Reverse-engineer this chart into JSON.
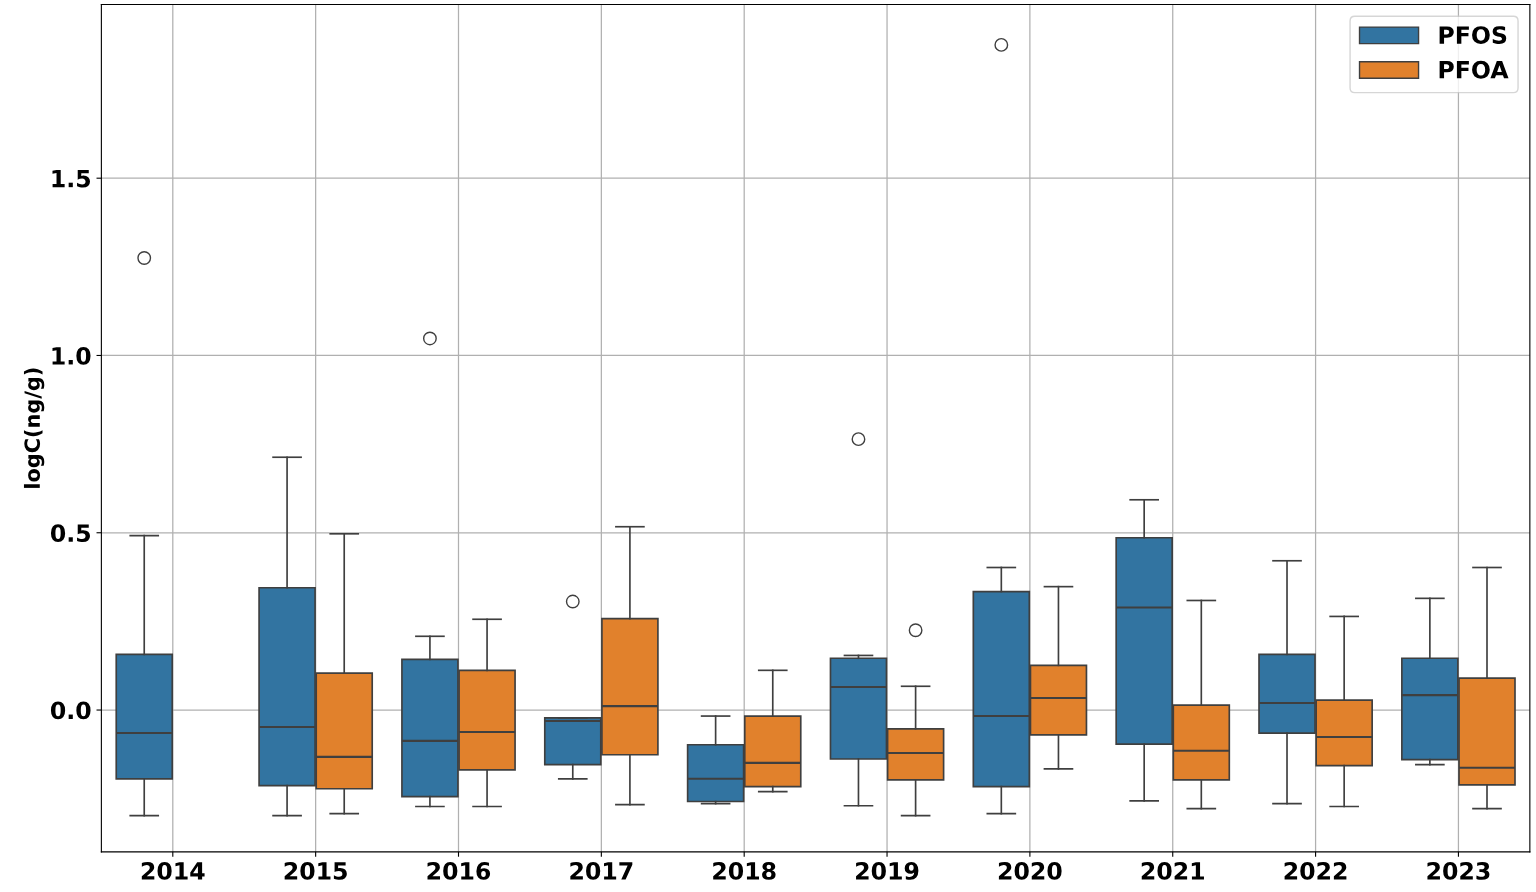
{
  "chart_data": {
    "type": "box",
    "ylabel": "logC(ng/g)",
    "categories": [
      "2014",
      "2015",
      "2016",
      "2017",
      "2018",
      "2019",
      "2020",
      "2021",
      "2022",
      "2023"
    ],
    "ylim": [
      -0.4,
      1.99
    ],
    "yticks": [
      {
        "value": 0.0,
        "label": "0.0"
      },
      {
        "value": 0.5,
        "label": "0.5"
      },
      {
        "value": 1.0,
        "label": "1.0"
      },
      {
        "value": 1.5,
        "label": "1.5"
      }
    ],
    "grid": true,
    "legend": "top right",
    "series": [
      {
        "name": "PFOS",
        "color": "#3274a1",
        "boxes": [
          {
            "low": -0.298,
            "q1": -0.194,
            "median": -0.065,
            "q3": 0.157,
            "high": 0.492,
            "outliers": [
              1.275
            ]
          },
          {
            "low": -0.298,
            "q1": -0.213,
            "median": -0.048,
            "q3": 0.345,
            "high": 0.713
          },
          {
            "low": -0.272,
            "q1": -0.244,
            "median": -0.087,
            "q3": 0.143,
            "high": 0.208,
            "outliers": [
              1.048
            ]
          },
          {
            "low": -0.194,
            "q1": -0.154,
            "median": -0.031,
            "q3": -0.022,
            "high": -0.022,
            "outliers": [
              0.306
            ]
          },
          {
            "low": -0.264,
            "q1": -0.258,
            "median": -0.194,
            "q3": -0.098,
            "high": -0.017
          },
          {
            "low": -0.27,
            "q1": -0.138,
            "median": 0.065,
            "q3": 0.146,
            "high": 0.154,
            "outliers": [
              0.764
            ]
          },
          {
            "low": -0.292,
            "q1": -0.216,
            "median": -0.017,
            "q3": 0.334,
            "high": 0.402,
            "outliers": [
              1.876
            ]
          },
          {
            "low": -0.256,
            "q1": -0.096,
            "median": 0.289,
            "q3": 0.486,
            "high": 0.593
          },
          {
            "low": -0.264,
            "q1": -0.065,
            "median": 0.02,
            "q3": 0.157,
            "high": 0.421
          },
          {
            "low": -0.154,
            "q1": -0.14,
            "median": 0.042,
            "q3": 0.146,
            "high": 0.315
          }
        ]
      },
      {
        "name": "PFOA",
        "color": "#e1812c",
        "boxes": [
          null,
          {
            "low": -0.292,
            "q1": -0.222,
            "median": -0.132,
            "q3": 0.104,
            "high": 0.497
          },
          {
            "low": -0.272,
            "q1": -0.169,
            "median": -0.062,
            "q3": 0.112,
            "high": 0.256
          },
          {
            "low": -0.267,
            "q1": -0.126,
            "median": 0.011,
            "q3": 0.258,
            "high": 0.517
          },
          {
            "low": -0.23,
            "q1": -0.216,
            "median": -0.149,
            "q3": -0.017,
            "high": 0.112
          },
          {
            "low": -0.298,
            "q1": -0.197,
            "median": -0.121,
            "q3": -0.053,
            "high": 0.067,
            "outliers": [
              0.225
            ]
          },
          {
            "low": -0.166,
            "q1": -0.07,
            "median": 0.034,
            "q3": 0.126,
            "high": 0.348
          },
          {
            "low": -0.278,
            "q1": -0.197,
            "median": -0.115,
            "q3": 0.014,
            "high": 0.309
          },
          {
            "low": -0.272,
            "q1": -0.157,
            "median": -0.076,
            "q3": 0.028,
            "high": 0.264
          },
          {
            "low": -0.278,
            "q1": -0.211,
            "median": -0.163,
            "q3": 0.09,
            "high": 0.402
          }
        ]
      }
    ]
  }
}
